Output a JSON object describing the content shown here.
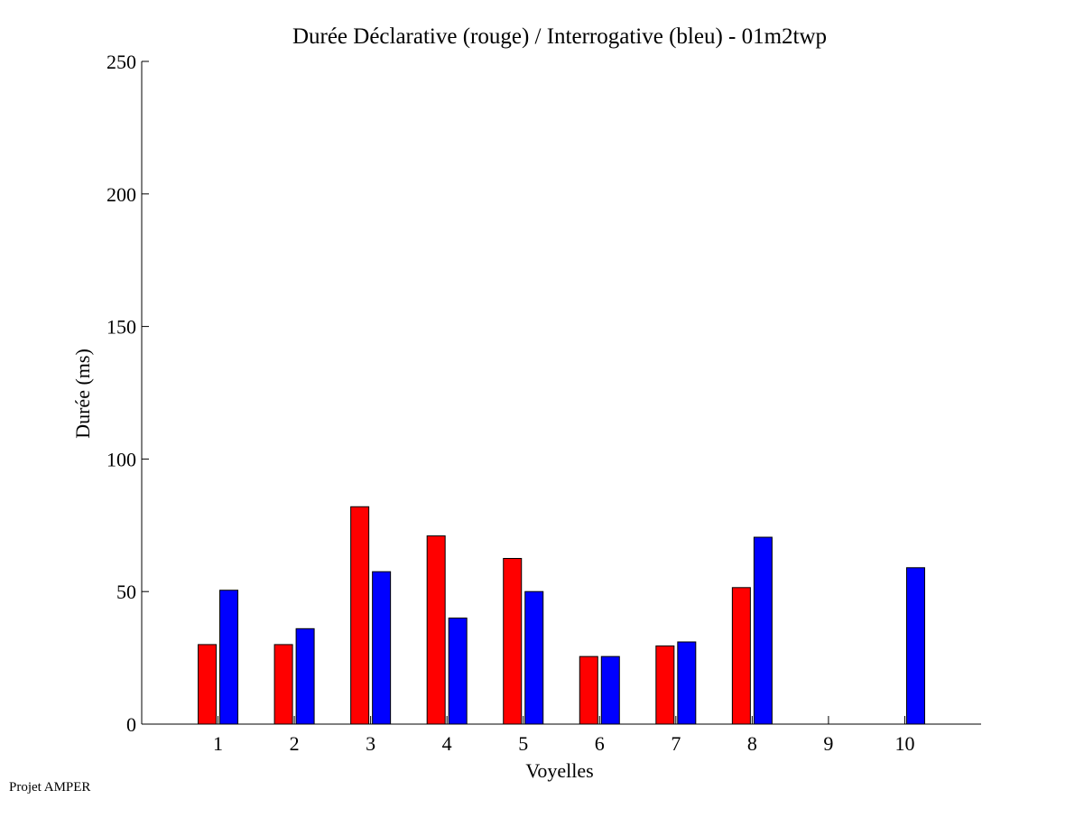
{
  "footer": {
    "note": "Projet AMPER"
  },
  "colors": {
    "declarative": "#ff0000",
    "interrogative": "#0000ff",
    "axis": "#000000",
    "background": "#ffffff"
  },
  "chart_data": {
    "type": "bar",
    "title": "Durée Déclarative (rouge) / Interrogative (bleu) - 01m2twp",
    "xlabel": "Voyelles",
    "ylabel": "Durée (ms)",
    "categories": [
      "1",
      "2",
      "3",
      "4",
      "5",
      "6",
      "7",
      "8",
      "9",
      "10"
    ],
    "ylim": [
      0,
      250
    ],
    "yticks": [
      0,
      50,
      100,
      150,
      200,
      250
    ],
    "xlim": [
      0,
      11
    ],
    "grid": false,
    "legend": "none",
    "series": [
      {
        "color": "#ff0000",
        "values": [
          30,
          30,
          82,
          71,
          62.5,
          25.5,
          29.5,
          51.5,
          null,
          null
        ]
      },
      {
        "color": "#0000ff",
        "values": [
          50.5,
          36,
          57.5,
          40,
          50,
          25.5,
          31,
          70.5,
          null,
          59
        ]
      }
    ]
  }
}
